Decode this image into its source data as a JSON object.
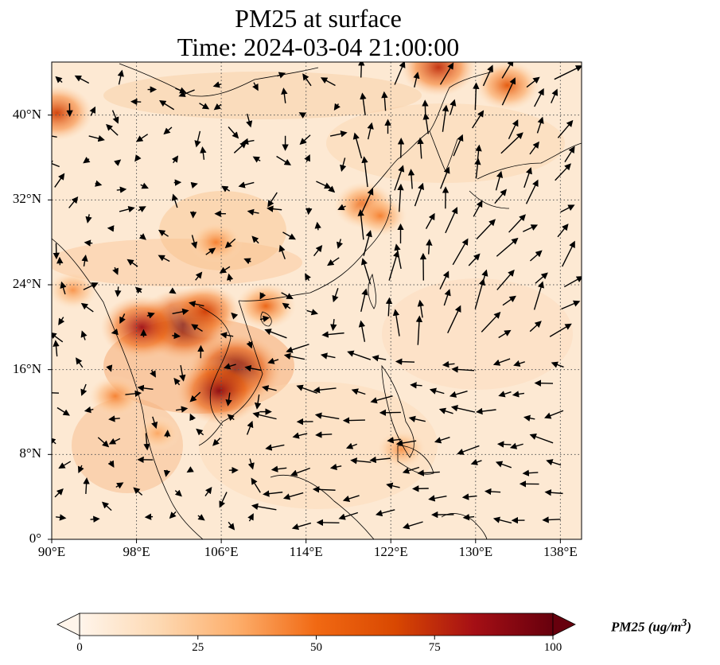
{
  "title": "PM25 at surface",
  "subtitle": "Time: 2024-03-04 21:00:00",
  "map": {
    "extent": {
      "lon_min": 90,
      "lon_max": 140,
      "lat_min": 0,
      "lat_max": 45
    },
    "lat_ticks": [
      {
        "value": 0,
        "label": "0°"
      },
      {
        "value": 8,
        "label": "8°N"
      },
      {
        "value": 16,
        "label": "16°N"
      },
      {
        "value": 24,
        "label": "24°N"
      },
      {
        "value": 32,
        "label": "32°N"
      },
      {
        "value": 40,
        "label": "40°N"
      }
    ],
    "lon_ticks": [
      {
        "value": 90,
        "label": "90°E"
      },
      {
        "value": 98,
        "label": "98°E"
      },
      {
        "value": 106,
        "label": "106°E"
      },
      {
        "value": 114,
        "label": "114°E"
      },
      {
        "value": 122,
        "label": "122°E"
      },
      {
        "value": 130,
        "label": "130°E"
      },
      {
        "value": 138,
        "label": "138°E"
      }
    ],
    "gridlines": "dotted",
    "background_color": "#fde9d3",
    "hotspots": [
      {
        "lon": 102.5,
        "lat": 20.3,
        "value": 100
      },
      {
        "lon": 107.3,
        "lat": 16.0,
        "value": 100
      },
      {
        "lon": 105.8,
        "lat": 14.0,
        "value": 90
      },
      {
        "lon": 98.5,
        "lat": 20.0,
        "value": 85
      },
      {
        "lon": 104.5,
        "lat": 21.5,
        "value": 70
      },
      {
        "lon": 110.2,
        "lat": 22.0,
        "value": 55
      },
      {
        "lon": 96.0,
        "lat": 13.5,
        "value": 45
      },
      {
        "lon": 90.5,
        "lat": 40.2,
        "value": 70
      },
      {
        "lon": 126.5,
        "lat": 44.5,
        "value": 75
      },
      {
        "lon": 133.0,
        "lat": 42.8,
        "value": 60
      },
      {
        "lon": 119.5,
        "lat": 31.5,
        "value": 55
      },
      {
        "lon": 105.5,
        "lat": 28.0,
        "value": 45
      },
      {
        "lon": 121.0,
        "lat": 30.5,
        "value": 45
      },
      {
        "lon": 92.0,
        "lat": 23.5,
        "value": 40
      },
      {
        "lon": 100.0,
        "lat": 10.0,
        "value": 35
      },
      {
        "lon": 123.0,
        "lat": 8.5,
        "value": 40
      }
    ],
    "wind_color": "#000000"
  },
  "colorbar": {
    "label": "PM25 (ug/m$^3$)",
    "cmap": [
      "#fff5eb",
      "#fdd9b3",
      "#fdae6b",
      "#f16913",
      "#d94801",
      "#a50f15",
      "#67000d"
    ],
    "min": 0,
    "max": 100,
    "ticks": [
      "0",
      "25",
      "50",
      "75",
      "100"
    ],
    "extend": "both"
  }
}
